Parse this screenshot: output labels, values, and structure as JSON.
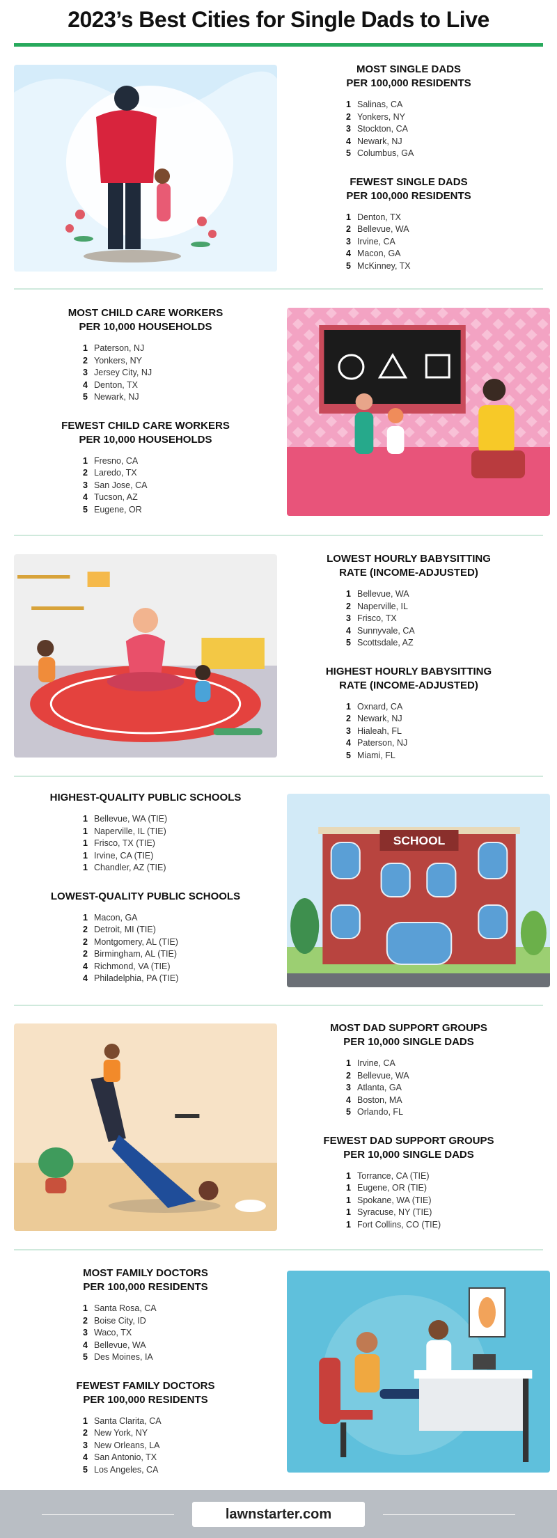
{
  "title": "2023’s Best Cities for Single Dads to Live",
  "sections": [
    {
      "blocks": [
        {
          "title": "MOST SINGLE DADS\nPER 100,000 RESIDENTS",
          "items": [
            [
              "1",
              "Salinas, CA"
            ],
            [
              "2",
              "Yonkers, NY"
            ],
            [
              "3",
              "Stockton, CA"
            ],
            [
              "4",
              "Newark, NJ"
            ],
            [
              "5",
              "Columbus, GA"
            ]
          ]
        },
        {
          "title": "FEWEST SINGLE DADS\nPER 100,000 RESIDENTS",
          "items": [
            [
              "1",
              "Denton, TX"
            ],
            [
              "2",
              "Bellevue, WA"
            ],
            [
              "3",
              "Irvine, CA"
            ],
            [
              "4",
              "Macon, GA"
            ],
            [
              "5",
              "McKinney, TX"
            ]
          ]
        }
      ]
    },
    {
      "blocks": [
        {
          "title": "MOST CHILD CARE WORKERS\nPER 10,000 HOUSEHOLDS",
          "items": [
            [
              "1",
              "Paterson, NJ"
            ],
            [
              "2",
              "Yonkers, NY"
            ],
            [
              "3",
              "Jersey City, NJ"
            ],
            [
              "4",
              "Denton, TX"
            ],
            [
              "5",
              "Newark, NJ"
            ]
          ]
        },
        {
          "title": "FEWEST CHILD CARE WORKERS\nPER 10,000 HOUSEHOLDS",
          "items": [
            [
              "1",
              "Fresno, CA"
            ],
            [
              "2",
              "Laredo, TX"
            ],
            [
              "3",
              "San Jose, CA"
            ],
            [
              "4",
              "Tucson, AZ"
            ],
            [
              "5",
              "Eugene, OR"
            ]
          ]
        }
      ]
    },
    {
      "blocks": [
        {
          "title": "LOWEST HOURLY BABYSITTING\nRATE (INCOME-ADJUSTED)",
          "items": [
            [
              "1",
              "Bellevue, WA"
            ],
            [
              "2",
              "Naperville, IL"
            ],
            [
              "3",
              "Frisco, TX"
            ],
            [
              "4",
              "Sunnyvale, CA"
            ],
            [
              "5",
              "Scottsdale, AZ"
            ]
          ]
        },
        {
          "title": "HIGHEST HOURLY BABYSITTING\nRATE (INCOME-ADJUSTED)",
          "items": [
            [
              "1",
              "Oxnard, CA"
            ],
            [
              "2",
              "Newark, NJ"
            ],
            [
              "3",
              "Hialeah, FL"
            ],
            [
              "4",
              "Paterson, NJ"
            ],
            [
              "5",
              "Miami, FL"
            ]
          ]
        }
      ]
    },
    {
      "blocks": [
        {
          "title": "HIGHEST-QUALITY PUBLIC SCHOOLS",
          "items": [
            [
              "1",
              "Bellevue, WA (TIE)"
            ],
            [
              "1",
              "Naperville, IL (TIE)"
            ],
            [
              "1",
              "Frisco, TX (TIE)"
            ],
            [
              "1",
              "Irvine, CA (TIE)"
            ],
            [
              "1",
              "Chandler, AZ (TIE)"
            ]
          ]
        },
        {
          "title": "LOWEST-QUALITY PUBLIC SCHOOLS",
          "items": [
            [
              "1",
              "Macon, GA"
            ],
            [
              "2",
              "Detroit, MI (TIE)"
            ],
            [
              "2",
              "Montgomery, AL (TIE)"
            ],
            [
              "2",
              "Birmingham, AL (TIE)"
            ],
            [
              "4",
              "Richmond, VA (TIE)"
            ],
            [
              "4",
              "Philadelphia, PA (TIE)"
            ]
          ]
        }
      ]
    },
    {
      "blocks": [
        {
          "title": "MOST DAD SUPPORT GROUPS\nPER 10,000 SINGLE DADS",
          "items": [
            [
              "1",
              "Irvine, CA"
            ],
            [
              "2",
              "Bellevue, WA"
            ],
            [
              "3",
              "Atlanta, GA"
            ],
            [
              "4",
              "Boston, MA"
            ],
            [
              "5",
              "Orlando, FL"
            ]
          ]
        },
        {
          "title": "FEWEST DAD SUPPORT GROUPS\nPER 10,000 SINGLE DADS",
          "items": [
            [
              "1",
              "Torrance, CA (TIE)"
            ],
            [
              "1",
              "Eugene, OR (TIE)"
            ],
            [
              "1",
              "Spokane, WA (TIE)"
            ],
            [
              "1",
              "Syracuse, NY (TIE)"
            ],
            [
              "1",
              "Fort Collins, CO (TIE)"
            ]
          ]
        }
      ]
    },
    {
      "blocks": [
        {
          "title": "MOST FAMILY DOCTORS\nPER 100,000 RESIDENTS",
          "items": [
            [
              "1",
              "Santa Rosa, CA"
            ],
            [
              "2",
              "Boise City, ID"
            ],
            [
              "3",
              "Waco, TX"
            ],
            [
              "4",
              "Bellevue, WA"
            ],
            [
              "5",
              "Des Moines, IA"
            ]
          ]
        },
        {
          "title": "FEWEST FAMILY DOCTORS\nPER 100,000 RESIDENTS",
          "items": [
            [
              "1",
              "Santa Clarita, CA"
            ],
            [
              "2",
              "New York, NY"
            ],
            [
              "3",
              "New Orleans, LA"
            ],
            [
              "4",
              "San Antonio, TX"
            ],
            [
              "5",
              "Los Angeles, CA"
            ]
          ]
        }
      ]
    }
  ],
  "school_sign": "SCHOOL",
  "footer": {
    "brand": "lawnstarter.com"
  },
  "colors": {
    "accent": "#27a95c",
    "divider": "#cfe9dc",
    "footer": "#b9bec4"
  }
}
